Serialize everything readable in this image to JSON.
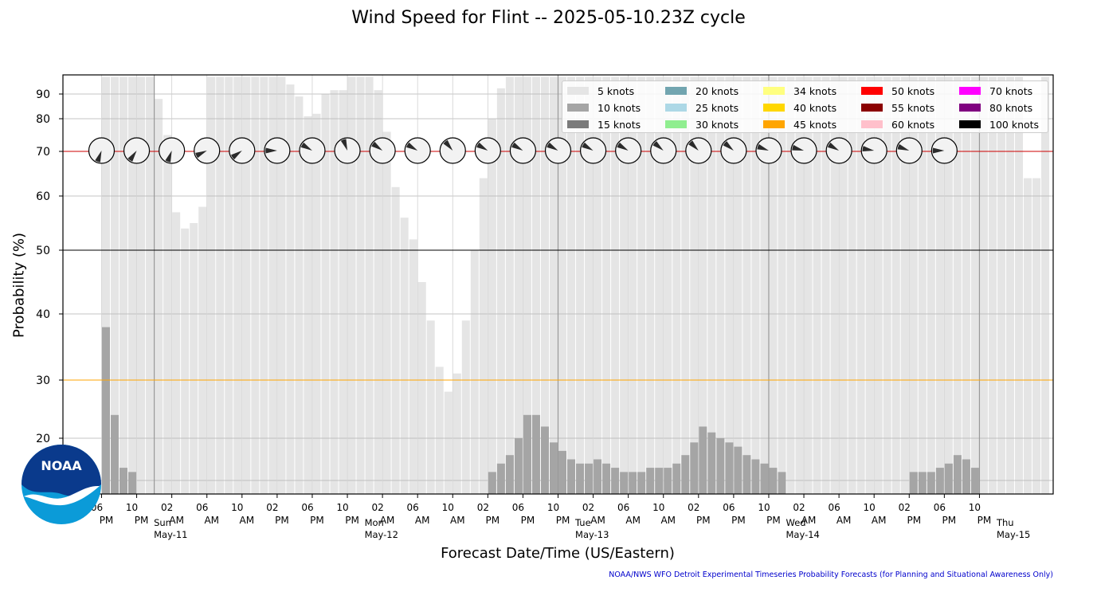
{
  "title": "Wind Speed for Flint -- 2025-05-10.23Z cycle",
  "xlabel": "Forecast Date/Time (US/Eastern)",
  "ylabel": "Probability (%)",
  "credit": "NOAA/NWS WFO Detroit Experimental Timeseries Probability Forecasts (for Planning and Situational Awareness Only)",
  "logo_text": "NOAA",
  "legend": [
    {
      "label": "5 knots",
      "color": "#e5e5e5"
    },
    {
      "label": "10 knots",
      "color": "#a5a5a5"
    },
    {
      "label": "15 knots",
      "color": "#7b7b7b"
    },
    {
      "label": "20 knots",
      "color": "#72a5b0"
    },
    {
      "label": "25 knots",
      "color": "#add8e6"
    },
    {
      "label": "30 knots",
      "color": "#90ee90"
    },
    {
      "label": "34 knots",
      "color": "#ffff80"
    },
    {
      "label": "40 knots",
      "color": "#ffd700"
    },
    {
      "label": "45 knots",
      "color": "#ffa500"
    },
    {
      "label": "50 knots",
      "color": "#ff0000"
    },
    {
      "label": "55 knots",
      "color": "#8b0000"
    },
    {
      "label": "60 knots",
      "color": "#ffc0cb"
    },
    {
      "label": "70 knots",
      "color": "#ff00ff"
    },
    {
      "label": "80 knots",
      "color": "#800080"
    },
    {
      "label": "100 knots",
      "color": "#000000"
    }
  ],
  "chart_data": {
    "type": "bar",
    "x_unit": "hours",
    "xlim": [
      -4.4,
      108.4
    ],
    "y_ticks": [
      20,
      30,
      40,
      50,
      60,
      70,
      80,
      90
    ],
    "reference_lines": [
      {
        "y": 30,
        "color": "#ffa500"
      },
      {
        "y": 50,
        "color": "#000000"
      },
      {
        "y": 70,
        "color": "#cc0000"
      }
    ],
    "day_boundaries": [
      6,
      52,
      76,
      100
    ],
    "x_ticks": [
      {
        "x": 0,
        "hour": "06",
        "ampm": "PM"
      },
      {
        "x": 4,
        "hour": "10",
        "ampm": "PM"
      },
      {
        "x": 8,
        "hour": "02",
        "ampm": "AM"
      },
      {
        "x": 12,
        "hour": "06",
        "ampm": "AM"
      },
      {
        "x": 16,
        "hour": "10",
        "ampm": "AM"
      },
      {
        "x": 20,
        "hour": "02",
        "ampm": "PM"
      },
      {
        "x": 24,
        "hour": "06",
        "ampm": "PM"
      },
      {
        "x": 28,
        "hour": "10",
        "ampm": "PM"
      },
      {
        "x": 32,
        "hour": "02",
        "ampm": "AM"
      },
      {
        "x": 36,
        "hour": "06",
        "ampm": "AM"
      },
      {
        "x": 40,
        "hour": "10",
        "ampm": "AM"
      },
      {
        "x": 44,
        "hour": "02",
        "ampm": "PM"
      },
      {
        "x": 48,
        "hour": "06",
        "ampm": "PM"
      },
      {
        "x": 52,
        "hour": "10",
        "ampm": "PM"
      },
      {
        "x": 56,
        "hour": "02",
        "ampm": "AM"
      },
      {
        "x": 60,
        "hour": "06",
        "ampm": "AM"
      },
      {
        "x": 64,
        "hour": "10",
        "ampm": "AM"
      },
      {
        "x": 68,
        "hour": "02",
        "ampm": "PM"
      },
      {
        "x": 72,
        "hour": "06",
        "ampm": "PM"
      },
      {
        "x": 76,
        "hour": "10",
        "ampm": "PM"
      },
      {
        "x": 80,
        "hour": "02",
        "ampm": "AM"
      },
      {
        "x": 84,
        "hour": "06",
        "ampm": "AM"
      },
      {
        "x": 88,
        "hour": "10",
        "ampm": "AM"
      },
      {
        "x": 92,
        "hour": "02",
        "ampm": "PM"
      },
      {
        "x": 96,
        "hour": "06",
        "ampm": "PM"
      },
      {
        "x": 100,
        "hour": "10",
        "ampm": "PM"
      }
    ],
    "day_labels": [
      {
        "x": 6,
        "day": "Sun",
        "date": "May-11"
      },
      {
        "x": 30,
        "day": "Mon",
        "date": "May-12"
      },
      {
        "x": 54,
        "day": "Tue",
        "date": "May-13"
      },
      {
        "x": 78,
        "day": "Wed",
        "date": "May-14"
      },
      {
        "x": 102,
        "day": "Thu",
        "date": "May-15"
      }
    ],
    "series": [
      {
        "name": "5 knots",
        "color": "#e5e5e5",
        "x": [
          0.5,
          1.5,
          2.5,
          3.5,
          4.5,
          5.5,
          6.5,
          7.5,
          8.5,
          9.5,
          10.5,
          11.5,
          12.5,
          13.5,
          14.5,
          15.5,
          16.5,
          17.5,
          18.5,
          19.5,
          20.5,
          21.5,
          22.5,
          23.5,
          24.5,
          25.5,
          26.5,
          27.5,
          28.5,
          29.5,
          30.5,
          31.5,
          32.5,
          33.5,
          34.5,
          35.5,
          36.5,
          37.5,
          38.5,
          39.5,
          40.5,
          41.5,
          42.5,
          43.5,
          44.5,
          45.5,
          46.5,
          47.5,
          48.5,
          49.5,
          50.5,
          51.5,
          52.5,
          53.5,
          54.5,
          55.5,
          56.5,
          57.5,
          58.5,
          59.5,
          60.5,
          61.5,
          62.5,
          63.5,
          64.5,
          65.5,
          66.5,
          67.5,
          68.5,
          69.5,
          70.5,
          71.5,
          72.5,
          73.5,
          74.5,
          75.5,
          76.5,
          77.5,
          78.5,
          79.5,
          80.5,
          81.5,
          82.5,
          83.5,
          84.5,
          85.5,
          86.5,
          87.5,
          88.5,
          89.5,
          90.5,
          91.5,
          92.5,
          93.5,
          94.5,
          95.5,
          96.5,
          97.5,
          98.5,
          99.5,
          100.5,
          101.5,
          102.5,
          103.5,
          104.5,
          105.5,
          106.5,
          107.5
        ],
        "y": [
          99,
          99,
          99,
          99,
          99,
          99,
          88,
          75,
          57,
          54,
          55,
          58,
          99,
          99,
          99,
          99,
          99,
          99,
          99,
          99,
          99,
          95,
          89,
          81,
          82,
          90,
          92,
          92,
          99,
          99,
          99,
          92,
          76,
          62,
          56,
          52,
          45,
          39,
          32,
          28,
          31,
          39,
          50,
          64,
          80,
          93,
          99,
          99,
          99,
          99,
          99,
          99,
          99,
          99,
          99,
          99,
          99,
          99,
          99,
          99,
          99,
          99,
          99,
          99,
          99,
          99,
          99,
          99,
          99,
          99,
          99,
          99,
          99,
          99,
          99,
          99,
          99,
          99,
          99,
          99,
          99,
          99,
          99,
          99,
          99,
          99,
          99,
          99,
          99,
          99,
          99,
          99,
          99,
          99,
          99,
          99,
          99,
          99,
          99,
          99,
          99,
          99,
          99,
          99,
          99,
          64,
          64,
          99
        ]
      },
      {
        "name": "10 knots",
        "color": "#a5a5a5",
        "x": [
          0.5,
          1.5,
          2.5,
          3.5,
          4.5,
          5.5,
          6.5,
          7.5,
          8.5,
          9.5,
          10.5,
          11.5,
          12.5,
          13.5,
          14.5,
          15.5,
          16.5,
          17.5,
          18.5,
          19.5,
          20.5,
          21.5,
          22.5,
          23.5,
          24.5,
          25.5,
          26.5,
          27.5,
          28.5,
          29.5,
          30.5,
          31.5,
          32.5,
          33.5,
          34.5,
          35.5,
          36.5,
          37.5,
          38.5,
          39.5,
          40.5,
          41.5,
          42.5,
          43.5,
          44.5,
          45.5,
          46.5,
          47.5,
          48.5,
          49.5,
          50.5,
          51.5,
          52.5,
          53.5,
          54.5,
          55.5,
          56.5,
          57.5,
          58.5,
          59.5,
          60.5,
          61.5,
          62.5,
          63.5,
          64.5,
          65.5,
          66.5,
          67.5,
          68.5,
          69.5,
          70.5,
          71.5,
          72.5,
          73.5,
          74.5,
          75.5,
          76.5,
          77.5,
          78.5,
          79.5,
          80.5,
          81.5,
          82.5,
          83.5,
          84.5,
          85.5,
          86.5,
          87.5,
          88.5,
          89.5,
          90.5,
          91.5,
          92.5,
          93.5,
          94.5,
          95.5,
          96.5,
          97.5,
          98.5,
          99.5,
          100.5,
          101.5,
          102.5,
          103.5,
          104.5,
          105.5,
          106.5,
          107.5
        ],
        "y": [
          38,
          24,
          13,
          12,
          0,
          0,
          0,
          0,
          0,
          0,
          0,
          0,
          0,
          0,
          0,
          0,
          0,
          0,
          0,
          0,
          0,
          0,
          0,
          0,
          0,
          0,
          0,
          0,
          0,
          0,
          0,
          0,
          0,
          0,
          0,
          0,
          0,
          0,
          0,
          0,
          0,
          0,
          0,
          0,
          12,
          14,
          16,
          20,
          24,
          24,
          22,
          19,
          17,
          15,
          14,
          14,
          15,
          14,
          13,
          12,
          12,
          12,
          13,
          13,
          13,
          14,
          16,
          19,
          22,
          21,
          20,
          19,
          18,
          16,
          15,
          14,
          13,
          12,
          0,
          0,
          0,
          0,
          0,
          0,
          0,
          0,
          0,
          0,
          0,
          0,
          0,
          0,
          12,
          12,
          12,
          13,
          14,
          16,
          15,
          13,
          0,
          0,
          0,
          0,
          0,
          0,
          0,
          0
        ]
      }
    ],
    "wind_dials": [
      {
        "x": 0,
        "dir_deg": 200
      },
      {
        "x": 4,
        "dir_deg": 215
      },
      {
        "x": 8,
        "dir_deg": 200
      },
      {
        "x": 12,
        "dir_deg": 245
      },
      {
        "x": 16,
        "dir_deg": 235
      },
      {
        "x": 20,
        "dir_deg": 270
      },
      {
        "x": 24,
        "dir_deg": 300
      },
      {
        "x": 28,
        "dir_deg": 340
      },
      {
        "x": 32,
        "dir_deg": 305
      },
      {
        "x": 36,
        "dir_deg": 300
      },
      {
        "x": 40,
        "dir_deg": 320
      },
      {
        "x": 44,
        "dir_deg": 300
      },
      {
        "x": 48,
        "dir_deg": 300
      },
      {
        "x": 52,
        "dir_deg": 300
      },
      {
        "x": 56,
        "dir_deg": 300
      },
      {
        "x": 60,
        "dir_deg": 300
      },
      {
        "x": 64,
        "dir_deg": 310
      },
      {
        "x": 68,
        "dir_deg": 315
      },
      {
        "x": 72,
        "dir_deg": 310
      },
      {
        "x": 76,
        "dir_deg": 290
      },
      {
        "x": 80,
        "dir_deg": 285
      },
      {
        "x": 84,
        "dir_deg": 300
      },
      {
        "x": 88,
        "dir_deg": 280
      },
      {
        "x": 92,
        "dir_deg": 290
      },
      {
        "x": 96,
        "dir_deg": 270
      }
    ]
  }
}
